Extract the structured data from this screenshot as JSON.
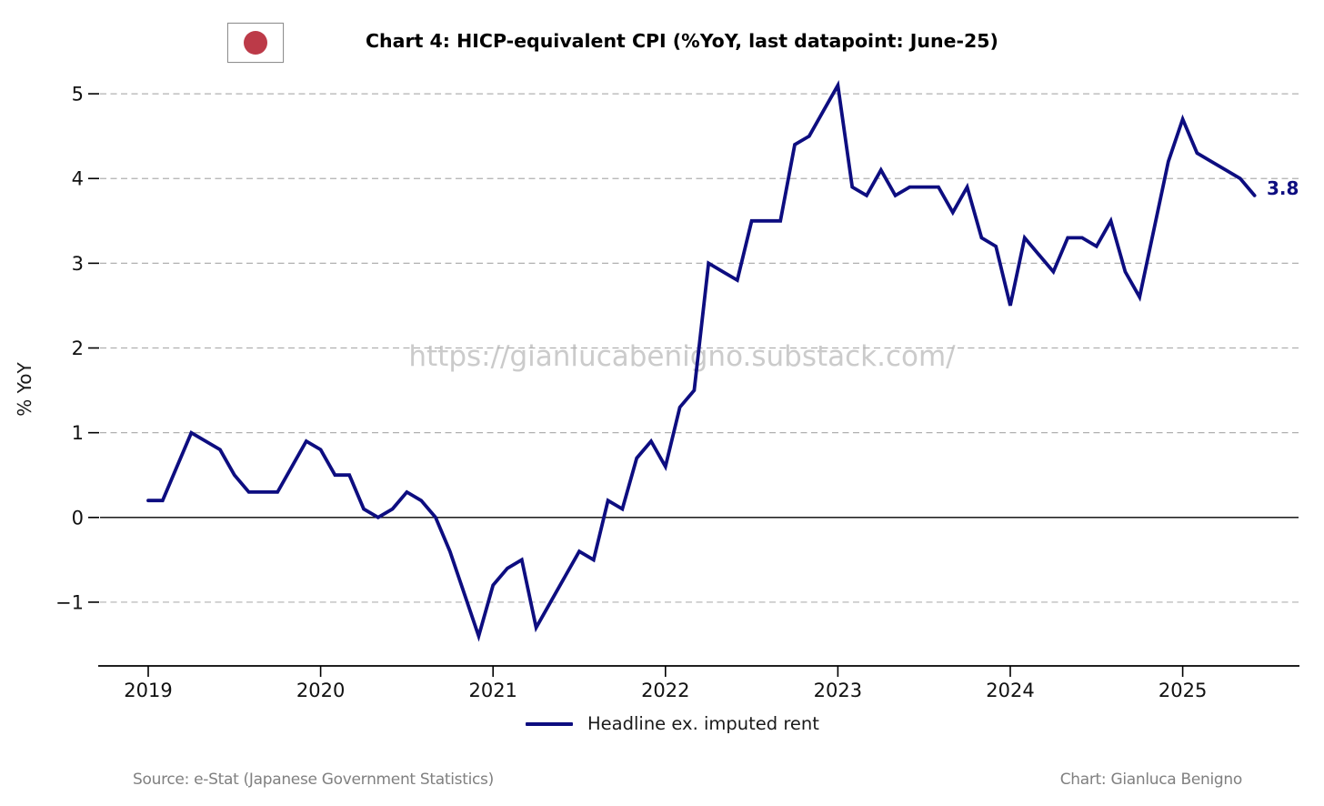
{
  "header": {
    "title": "Chart 4: HICP-equivalent CPI (%YoY, last datapoint: June-25)",
    "flag_icon": "japan-flag"
  },
  "watermark": "https://gianlucabenigno.substack.com/",
  "annotation": {
    "last_value_label": "3.8"
  },
  "legend": {
    "label": "Headline ex. imputed rent"
  },
  "footer": {
    "source": "Source: e-Stat (Japanese Government Statistics)",
    "credit": "Chart: Gianluca Benigno"
  },
  "colors": {
    "line": "#0d0d80",
    "flag_red": "#bc3a48",
    "watermark_gray": "#cbcbcb",
    "footer_gray": "#808080",
    "grid_gray": "#b0b0b0"
  },
  "chart_data": {
    "type": "line",
    "title": "Chart 4: HICP-equivalent CPI (%YoY, last datapoint: June-25)",
    "xlabel": "",
    "ylabel": "% YoY",
    "x_tick_labels": [
      "2019",
      "2020",
      "2021",
      "2022",
      "2023",
      "2024",
      "2025"
    ],
    "y_ticks": [
      5,
      4,
      3,
      2,
      1,
      0,
      -1
    ],
    "ylim": [
      -1.75,
      5.25
    ],
    "grid": "horizontal-dashed",
    "zero_line": true,
    "legend_position": "bottom-center",
    "x_start": "2019-01",
    "x_end": "2025-06",
    "x_frequency": "monthly",
    "last_point_label": "3.8",
    "series": [
      {
        "name": "Headline ex. imputed rent",
        "color": "#0d0d80",
        "values": [
          0.2,
          0.2,
          0.6,
          1.0,
          0.9,
          0.8,
          0.5,
          0.3,
          0.3,
          0.3,
          0.6,
          0.9,
          0.8,
          0.5,
          0.5,
          0.1,
          0.0,
          0.1,
          0.3,
          0.2,
          0.0,
          -0.4,
          -0.9,
          -1.4,
          -0.8,
          -0.6,
          -0.5,
          -1.3,
          -1.0,
          -0.7,
          -0.4,
          -0.5,
          0.2,
          0.1,
          0.7,
          0.9,
          0.6,
          1.3,
          1.5,
          3.0,
          2.9,
          2.8,
          3.5,
          3.5,
          3.5,
          4.4,
          4.5,
          4.8,
          5.1,
          3.9,
          3.8,
          4.1,
          3.8,
          3.9,
          3.9,
          3.9,
          3.6,
          3.9,
          3.3,
          3.2,
          2.5,
          3.3,
          3.1,
          2.9,
          3.3,
          3.3,
          3.2,
          3.5,
          2.9,
          2.6,
          3.4,
          4.2,
          4.7,
          4.3,
          4.2,
          4.1,
          4.0,
          3.8
        ]
      }
    ]
  }
}
